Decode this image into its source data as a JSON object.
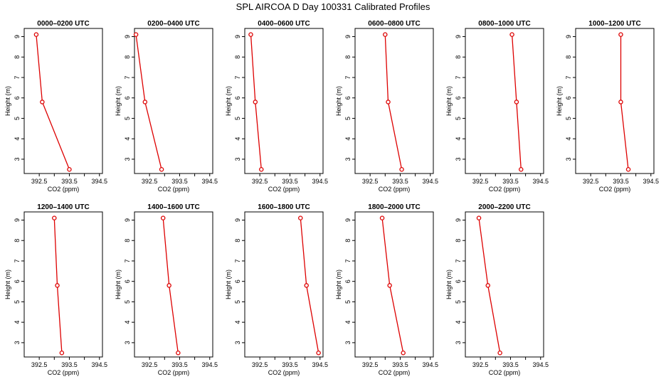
{
  "title": "SPL AIRCOA D  Day 100331  Calibrated Profiles",
  "colors": {
    "series": "#dd0000",
    "axis": "#000000",
    "background": "#ffffff"
  },
  "chart_data": [
    {
      "type": "line",
      "title": "0000–0200 UTC",
      "xlabel": "CO2 (ppm)",
      "ylabel": "Height (m)",
      "xlim": [
        392.0,
        394.6
      ],
      "ylim": [
        2.3,
        9.4
      ],
      "xticks": [
        "392.5",
        "393.5",
        "394.5"
      ],
      "yticks": [
        "3",
        "4",
        "5",
        "6",
        "7",
        "8",
        "9"
      ],
      "x": [
        392.4,
        392.6,
        393.5
      ],
      "y": [
        9.1,
        5.8,
        2.5
      ]
    },
    {
      "type": "line",
      "title": "0200–0400 UTC",
      "xlabel": "CO2 (ppm)",
      "ylabel": "Height (m)",
      "xlim": [
        392.0,
        394.6
      ],
      "ylim": [
        2.3,
        9.4
      ],
      "xticks": [
        "392.5",
        "393.5",
        "394.5"
      ],
      "yticks": [
        "3",
        "4",
        "5",
        "6",
        "7",
        "8",
        "9"
      ],
      "x": [
        392.05,
        392.35,
        392.9
      ],
      "y": [
        9.1,
        5.8,
        2.5
      ]
    },
    {
      "type": "line",
      "title": "0400–0600 UTC",
      "xlabel": "CO2 (ppm)",
      "ylabel": "Height (m)",
      "xlim": [
        392.0,
        394.6
      ],
      "ylim": [
        2.3,
        9.4
      ],
      "xticks": [
        "392.5",
        "393.5",
        "394.5"
      ],
      "yticks": [
        "3",
        "4",
        "5",
        "6",
        "7",
        "8",
        "9"
      ],
      "x": [
        392.2,
        392.35,
        392.55
      ],
      "y": [
        9.1,
        5.8,
        2.5
      ]
    },
    {
      "type": "line",
      "title": "0600–0800 UTC",
      "xlabel": "CO2 (ppm)",
      "ylabel": "Height (m)",
      "xlim": [
        392.0,
        394.6
      ],
      "ylim": [
        2.3,
        9.4
      ],
      "xticks": [
        "392.5",
        "393.5",
        "394.5"
      ],
      "yticks": [
        "3",
        "4",
        "5",
        "6",
        "7",
        "8",
        "9"
      ],
      "x": [
        393.0,
        393.1,
        393.55
      ],
      "y": [
        9.1,
        5.8,
        2.5
      ]
    },
    {
      "type": "line",
      "title": "0800–1000 UTC",
      "xlabel": "CO2 (ppm)",
      "ylabel": "Height (m)",
      "xlim": [
        392.0,
        394.6
      ],
      "ylim": [
        2.3,
        9.4
      ],
      "xticks": [
        "392.5",
        "393.5",
        "394.5"
      ],
      "yticks": [
        "3",
        "4",
        "5",
        "6",
        "7",
        "8",
        "9"
      ],
      "x": [
        393.55,
        393.7,
        393.85
      ],
      "y": [
        9.1,
        5.8,
        2.5
      ]
    },
    {
      "type": "line",
      "title": "1000–1200 UTC",
      "xlabel": "CO2 (ppm)",
      "ylabel": "Height (m)",
      "xlim": [
        392.0,
        394.6
      ],
      "ylim": [
        2.3,
        9.4
      ],
      "xticks": [
        "392.5",
        "393.5",
        "394.5"
      ],
      "yticks": [
        "3",
        "4",
        "5",
        "6",
        "7",
        "8",
        "9"
      ],
      "x": [
        393.5,
        393.5,
        393.75
      ],
      "y": [
        9.1,
        5.8,
        2.5
      ]
    },
    {
      "type": "line",
      "title": "1200–1400 UTC",
      "xlabel": "CO2 (ppm)",
      "ylabel": "Height (m)",
      "xlim": [
        392.0,
        394.6
      ],
      "ylim": [
        2.3,
        9.4
      ],
      "xticks": [
        "392.5",
        "393.5",
        "394.5"
      ],
      "yticks": [
        "3",
        "4",
        "5",
        "6",
        "7",
        "8",
        "9"
      ],
      "x": [
        393.0,
        393.1,
        393.25
      ],
      "y": [
        9.1,
        5.8,
        2.5
      ]
    },
    {
      "type": "line",
      "title": "1400–1600 UTC",
      "xlabel": "CO2 (ppm)",
      "ylabel": "Height (m)",
      "xlim": [
        392.0,
        394.6
      ],
      "ylim": [
        2.3,
        9.4
      ],
      "xticks": [
        "392.5",
        "393.5",
        "394.5"
      ],
      "yticks": [
        "3",
        "4",
        "5",
        "6",
        "7",
        "8",
        "9"
      ],
      "x": [
        392.95,
        393.15,
        393.45
      ],
      "y": [
        9.1,
        5.8,
        2.5
      ]
    },
    {
      "type": "line",
      "title": "1600–1800 UTC",
      "xlabel": "CO2 (ppm)",
      "ylabel": "Height (m)",
      "xlim": [
        392.0,
        394.6
      ],
      "ylim": [
        2.3,
        9.4
      ],
      "xticks": [
        "392.5",
        "393.5",
        "394.5"
      ],
      "yticks": [
        "3",
        "4",
        "5",
        "6",
        "7",
        "8",
        "9"
      ],
      "x": [
        393.85,
        394.05,
        394.45
      ],
      "y": [
        9.1,
        5.8,
        2.5
      ]
    },
    {
      "type": "line",
      "title": "1800–2000 UTC",
      "xlabel": "CO2 (ppm)",
      "ylabel": "Height (m)",
      "xlim": [
        392.0,
        394.6
      ],
      "ylim": [
        2.3,
        9.4
      ],
      "xticks": [
        "392.5",
        "393.5",
        "394.5"
      ],
      "yticks": [
        "3",
        "4",
        "5",
        "6",
        "7",
        "8",
        "9"
      ],
      "x": [
        392.9,
        393.15,
        393.6
      ],
      "y": [
        9.1,
        5.8,
        2.5
      ]
    },
    {
      "type": "line",
      "title": "2000–2200 UTC",
      "xlabel": "CO2 (ppm)",
      "ylabel": "Height (m)",
      "xlim": [
        392.0,
        394.6
      ],
      "ylim": [
        2.3,
        9.4
      ],
      "xticks": [
        "392.5",
        "393.5",
        "394.5"
      ],
      "yticks": [
        "3",
        "4",
        "5",
        "6",
        "7",
        "8",
        "9"
      ],
      "x": [
        392.45,
        392.75,
        393.15
      ],
      "y": [
        9.1,
        5.8,
        2.5
      ]
    }
  ]
}
